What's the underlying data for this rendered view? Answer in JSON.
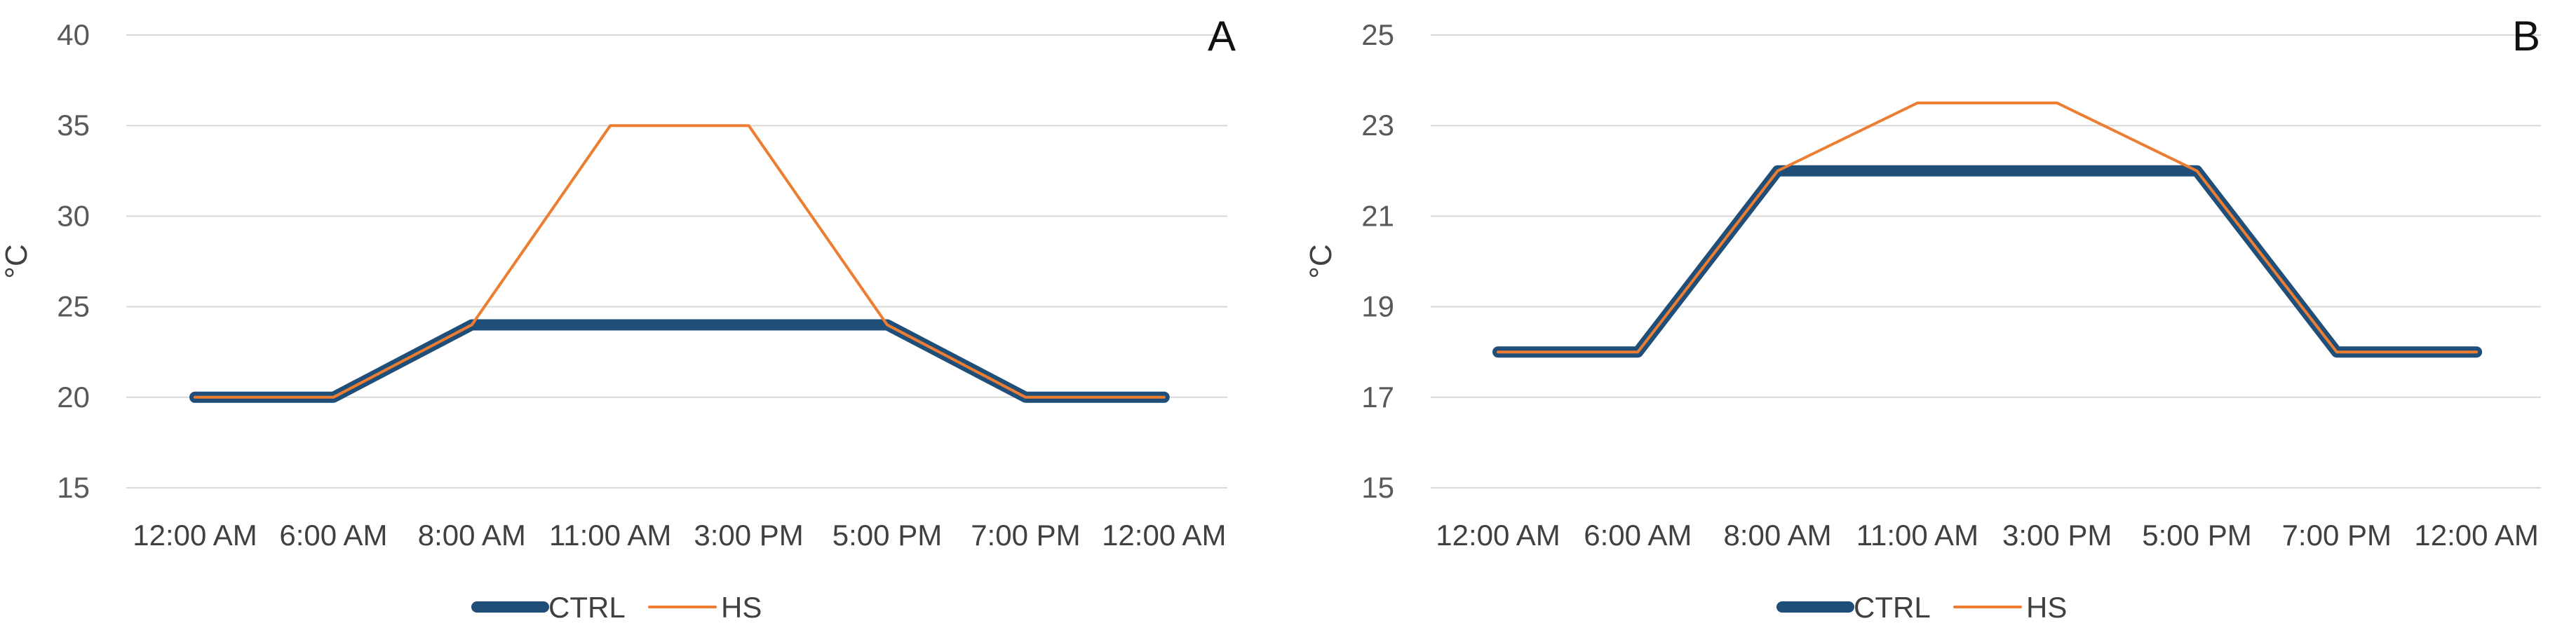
{
  "chart_data": [
    {
      "type": "line",
      "panel_label": "A",
      "ylabel": "°C",
      "xlabel": "",
      "title": "",
      "categories": [
        "12:00 AM",
        "6:00 AM",
        "8:00 AM",
        "11:00 AM",
        "3:00 PM",
        "5:00 PM",
        "7:00 PM",
        "12:00 AM"
      ],
      "ylim": [
        15,
        40
      ],
      "yticks": [
        15,
        20,
        25,
        30,
        35,
        40
      ],
      "grid": true,
      "legend_position": "bottom",
      "series": [
        {
          "name": "CTRL",
          "color": "#1f4e79",
          "values": [
            20,
            20,
            24,
            24,
            24,
            24,
            20,
            20
          ]
        },
        {
          "name": "HS",
          "color": "#ed7d31",
          "values": [
            20,
            20,
            24,
            35,
            35,
            24,
            20,
            20
          ]
        }
      ]
    },
    {
      "type": "line",
      "panel_label": "B",
      "ylabel": "°C",
      "xlabel": "",
      "title": "",
      "categories": [
        "12:00 AM",
        "6:00 AM",
        "8:00 AM",
        "11:00 AM",
        "3:00 PM",
        "5:00 PM",
        "7:00 PM",
        "12:00 AM"
      ],
      "ylim": [
        15,
        25
      ],
      "yticks": [
        15,
        17,
        19,
        21,
        23,
        25
      ],
      "grid": true,
      "legend_position": "bottom",
      "series": [
        {
          "name": "CTRL",
          "color": "#1f4e79",
          "values": [
            18,
            18,
            22,
            22,
            22,
            22,
            18,
            18
          ]
        },
        {
          "name": "HS",
          "color": "#ed7d31",
          "values": [
            18,
            18,
            22,
            23.5,
            23.5,
            22,
            18,
            18
          ]
        }
      ]
    }
  ]
}
